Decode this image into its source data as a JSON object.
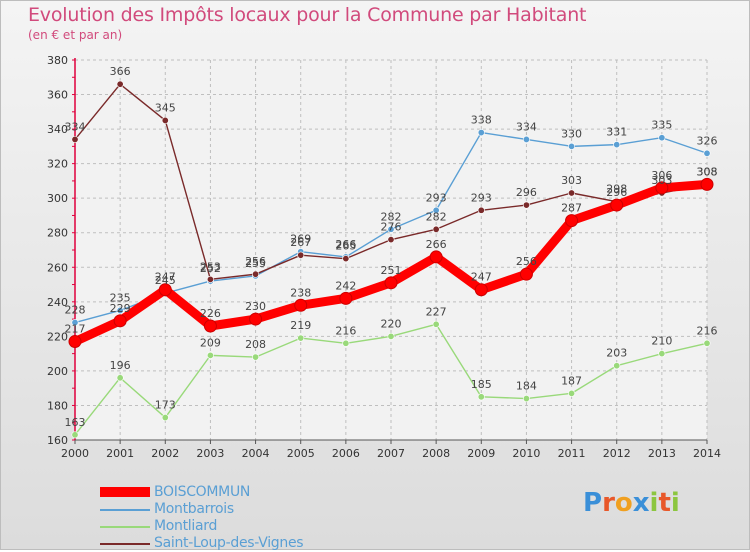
{
  "header": {
    "title": "Evolution des Impôts locaux pour la Commune par Habitant",
    "subtitle": "(en € et par an)"
  },
  "logo": {
    "text": "Proxiti"
  },
  "colors": {
    "title": "#d14a7c",
    "axis": "#e0003c",
    "grid": "#bfbfbf",
    "boiscommun": "#ff0000",
    "montbarrois": "#5a9fd4",
    "montliard": "#99d97a",
    "saint_loup": "#7a2a2a"
  },
  "chart_data": {
    "type": "line",
    "title": "Evolution des Impôts locaux pour la Commune par Habitant",
    "subtitle": "(en € et par an)",
    "x": [
      2000,
      2001,
      2002,
      2003,
      2004,
      2005,
      2006,
      2007,
      2008,
      2009,
      2010,
      2011,
      2012,
      2013,
      2014
    ],
    "ylim": [
      160,
      380
    ],
    "yticks": [
      160,
      180,
      200,
      220,
      240,
      260,
      280,
      300,
      320,
      340,
      360,
      380
    ],
    "grid": true,
    "legend": "bottom-left",
    "series": [
      {
        "name": "BOISCOMMUN",
        "color": "#ff0000",
        "values": [
          217,
          229,
          247,
          226,
          230,
          238,
          242,
          251,
          266,
          247,
          256,
          287,
          296,
          306,
          308
        ]
      },
      {
        "name": "Montbarrois",
        "color": "#5a9fd4",
        "values": [
          228,
          235,
          245,
          252,
          255,
          269,
          266,
          282,
          293,
          338,
          334,
          330,
          331,
          335,
          326
        ]
      },
      {
        "name": "Montliard",
        "color": "#99d97a",
        "values": [
          163,
          196,
          173,
          209,
          208,
          219,
          216,
          220,
          227,
          185,
          184,
          187,
          203,
          210,
          216
        ]
      },
      {
        "name": "Saint-Loup-des-Vignes",
        "color": "#7a2a2a",
        "values": [
          334,
          366,
          345,
          253,
          256,
          267,
          265,
          276,
          282,
          293,
          296,
          303,
          298,
          303,
          308
        ]
      }
    ]
  }
}
